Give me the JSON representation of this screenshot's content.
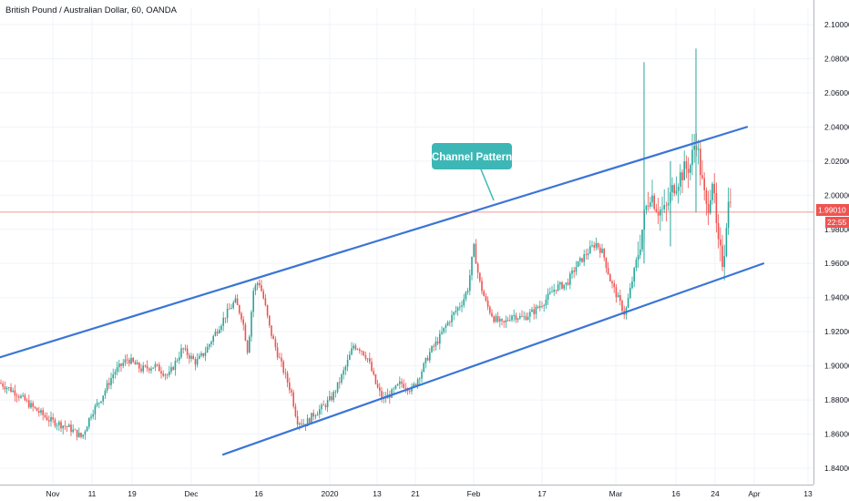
{
  "chart_data": {
    "type": "candlestick",
    "title": "British Pound / Australian Dollar, 60, OANDA",
    "y_range": [
      1.83,
      2.11
    ],
    "y_ticks": [
      "1.84000",
      "1.86000",
      "1.88000",
      "1.90000",
      "1.92000",
      "1.94000",
      "1.96000",
      "1.98000",
      "2.00000",
      "2.02000",
      "2.04000",
      "2.06000",
      "2.08000",
      "2.10000"
    ],
    "x_ticks": [
      "Nov",
      "11",
      "19",
      "Dec",
      "16",
      "2020",
      "13",
      "21",
      "Feb",
      "17",
      "Mar",
      "16",
      "24",
      "Apr",
      "13"
    ],
    "last_price": "1.99010",
    "countdown": "22:55",
    "annotation": "Channel Pattern",
    "grid": true,
    "colors": {
      "up": "#26a69a",
      "down": "#ef5350",
      "channel": "#3a75d6",
      "callout": "#3db7b6",
      "price_line": "#ef5350"
    },
    "price_path": [
      [
        0,
        1.89
      ],
      [
        18,
        1.884
      ],
      [
        35,
        1.876
      ],
      [
        55,
        1.868
      ],
      [
        75,
        1.864
      ],
      [
        90,
        1.858
      ],
      [
        100,
        1.872
      ],
      [
        110,
        1.88
      ],
      [
        125,
        1.896
      ],
      [
        140,
        1.904
      ],
      [
        155,
        1.898
      ],
      [
        170,
        1.9
      ],
      [
        185,
        1.894
      ],
      [
        200,
        1.91
      ],
      [
        215,
        1.902
      ],
      [
        225,
        1.908
      ],
      [
        235,
        1.918
      ],
      [
        248,
        1.93
      ],
      [
        258,
        1.938
      ],
      [
        266,
        1.928
      ],
      [
        272,
        1.908
      ],
      [
        278,
        1.944
      ],
      [
        284,
        1.95
      ],
      [
        290,
        1.938
      ],
      [
        296,
        1.922
      ],
      [
        304,
        1.908
      ],
      [
        312,
        1.896
      ],
      [
        320,
        1.884
      ],
      [
        326,
        1.868
      ],
      [
        335,
        1.866
      ],
      [
        345,
        1.872
      ],
      [
        355,
        1.876
      ],
      [
        365,
        1.882
      ],
      [
        372,
        1.89
      ],
      [
        380,
        1.9
      ],
      [
        388,
        1.912
      ],
      [
        396,
        1.91
      ],
      [
        404,
        1.904
      ],
      [
        412,
        1.89
      ],
      [
        420,
        1.88
      ],
      [
        430,
        1.884
      ],
      [
        440,
        1.89
      ],
      [
        452,
        1.886
      ],
      [
        462,
        1.896
      ],
      [
        472,
        1.908
      ],
      [
        482,
        1.916
      ],
      [
        490,
        1.924
      ],
      [
        500,
        1.932
      ],
      [
        508,
        1.938
      ],
      [
        514,
        1.946
      ],
      [
        520,
        1.97
      ],
      [
        526,
        1.95
      ],
      [
        534,
        1.936
      ],
      [
        542,
        1.928
      ],
      [
        552,
        1.924
      ],
      [
        562,
        1.93
      ],
      [
        574,
        1.928
      ],
      [
        586,
        1.932
      ],
      [
        598,
        1.938
      ],
      [
        610,
        1.946
      ],
      [
        622,
        1.948
      ],
      [
        632,
        1.958
      ],
      [
        644,
        1.966
      ],
      [
        654,
        1.972
      ],
      [
        662,
        1.966
      ],
      [
        670,
        1.95
      ],
      [
        678,
        1.94
      ],
      [
        686,
        1.93
      ],
      [
        694,
        1.95
      ],
      [
        702,
        1.97
      ],
      [
        708,
        1.99
      ],
      [
        714,
        2.002
      ],
      [
        722,
        1.992
      ],
      [
        730,
        1.99
      ],
      [
        740,
        2.006
      ],
      [
        750,
        2.014
      ],
      [
        758,
        2.018
      ],
      [
        764,
        2.034
      ],
      [
        770,
        2.01
      ],
      [
        776,
        1.99
      ],
      [
        782,
        2.01
      ],
      [
        788,
        1.97
      ],
      [
        794,
        1.96
      ],
      [
        798,
        1.99
      ],
      [
        802,
        2.002
      ],
      [
        804,
        1.99
      ]
    ],
    "spikes": [
      [
        707,
        1.96,
        2.078
      ],
      [
        764,
        1.99,
        2.086
      ],
      [
        736,
        1.97,
        2.02
      ]
    ],
    "channel": {
      "upper": [
        [
          0,
          1.905
        ],
        [
          820,
          2.04
        ]
      ],
      "lower": [
        [
          245,
          1.848
        ],
        [
          838,
          1.96
        ]
      ]
    }
  }
}
